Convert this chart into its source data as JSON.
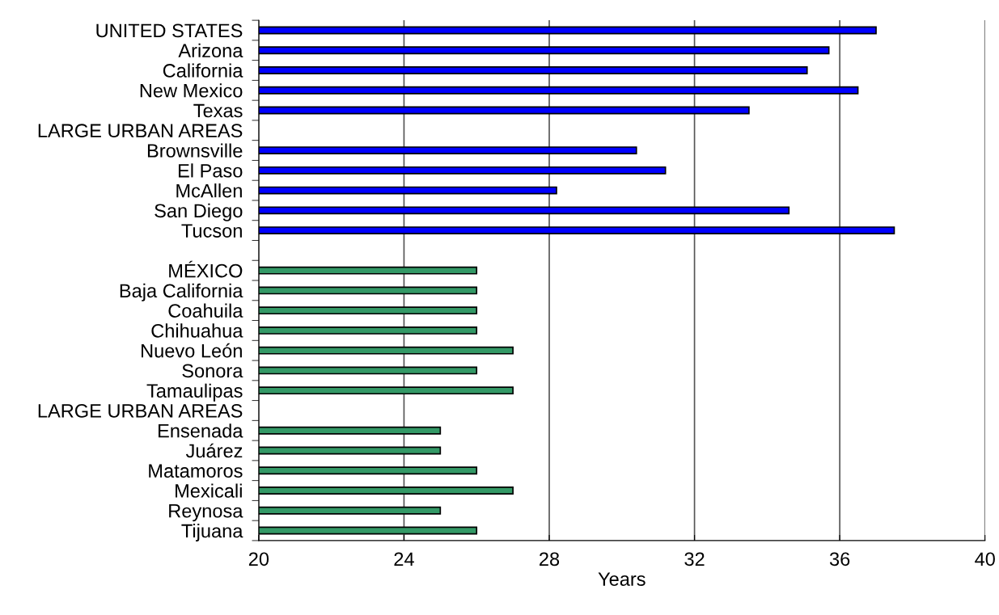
{
  "chart_data": {
    "type": "bar",
    "orientation": "horizontal",
    "xlabel": "Years",
    "categories": [
      "UNITED STATES",
      "Arizona",
      "California",
      "New Mexico",
      "Texas",
      "LARGE URBAN AREAS",
      "Brownsville",
      "El Paso",
      "McAllen",
      "San Diego",
      "Tucson",
      null,
      "MÉXICO",
      "Baja California",
      "Coahuila",
      "Chihuahua",
      "Nuevo León",
      "Sonora",
      "Tamaulipas",
      "LARGE URBAN AREAS",
      "Ensenada",
      "Juárez",
      "Matamoros",
      "Mexicali",
      "Reynosa",
      "Tijuana"
    ],
    "series": [
      {
        "color": "#0000ff",
        "values": [
          37.0,
          35.7,
          35.1,
          36.5,
          33.5,
          null,
          30.4,
          31.2,
          28.2,
          34.6,
          37.5,
          null,
          null,
          null,
          null,
          null,
          null,
          null,
          null,
          null,
          null,
          null,
          null,
          null,
          null,
          null
        ]
      },
      {
        "color": "#339966",
        "values": [
          null,
          null,
          null,
          null,
          null,
          null,
          null,
          null,
          null,
          null,
          null,
          null,
          26,
          26,
          26,
          26,
          27,
          26,
          27,
          null,
          25,
          25,
          26,
          27,
          25,
          26
        ]
      }
    ],
    "xlim": [
      20,
      40
    ],
    "xticks": [
      20,
      24,
      28,
      32,
      36,
      40
    ],
    "grid": "x"
  }
}
